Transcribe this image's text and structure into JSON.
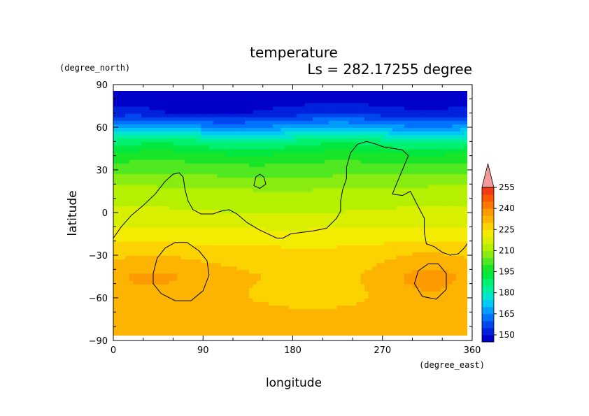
{
  "chart_data": {
    "type": "heatmap",
    "title": "temperature",
    "subtitle": "Ls = 282.17255 degree",
    "xlabel": "longitude",
    "ylabel": "latitude",
    "x_units": "(degree_east)",
    "y_units": "(degree_north)",
    "xlim": [
      0,
      360
    ],
    "ylim": [
      -90,
      90
    ],
    "x_ticks": [
      0,
      90,
      180,
      270,
      360
    ],
    "y_ticks": [
      90,
      60,
      30,
      0,
      -30,
      -60,
      -90
    ],
    "x_tick_labels": [
      "0",
      "90",
      "180",
      "270",
      "360"
    ],
    "y_tick_labels": [
      "90",
      "60",
      "30",
      "0",
      "−30",
      "−60",
      "−90"
    ],
    "data_lat_range": [
      -87,
      87
    ],
    "colorbar": {
      "levels": [
        145,
        150,
        155,
        160,
        165,
        170,
        175,
        180,
        185,
        190,
        195,
        200,
        205,
        210,
        215,
        220,
        225,
        230,
        235,
        240,
        245,
        250,
        255,
        260
      ],
      "tick_values": [
        150,
        165,
        180,
        195,
        210,
        225,
        240,
        255
      ],
      "tick_labels": [
        "150",
        "165",
        "180",
        "195",
        "210",
        "225",
        "240",
        "255"
      ],
      "colors": [
        "#0000c8",
        "#0022dc",
        "#0048ee",
        "#0072ff",
        "#009cff",
        "#00c8f4",
        "#00e4d0",
        "#00f0a0",
        "#00f070",
        "#00e840",
        "#18e428",
        "#50e820",
        "#88ec10",
        "#b4f000",
        "#d8f000",
        "#f4ec00",
        "#fcd200",
        "#fcb400",
        "#fc9a00",
        "#fc7800",
        "#fc5a00",
        "#f43c14",
        "#f06464",
        "#f49a9a"
      ],
      "extend": "max"
    },
    "field_description_points": [
      {
        "lat": 80,
        "temp": 148
      },
      {
        "lat": 70,
        "temp": 152
      },
      {
        "lat": 60,
        "temp": 168
      },
      {
        "lat": 50,
        "temp": 186
      },
      {
        "lat": 40,
        "temp": 197
      },
      {
        "lat": 30,
        "temp": 203
      },
      {
        "lat": 15,
        "temp": 212
      },
      {
        "lat": 0,
        "temp": 216
      },
      {
        "lat": -15,
        "temp": 222
      },
      {
        "lat": -30,
        "temp": 228
      },
      {
        "lat": -45,
        "temp": 232
      },
      {
        "lat": -60,
        "temp": 231
      },
      {
        "lat": -80,
        "temp": 233
      }
    ],
    "contours": [
      {
        "name": "continent",
        "points": [
          [
            0,
            -18
          ],
          [
            8,
            -10
          ],
          [
            18,
            -2
          ],
          [
            30,
            5
          ],
          [
            42,
            13
          ],
          [
            52,
            22
          ],
          [
            60,
            27
          ],
          [
            66,
            28
          ],
          [
            70,
            25
          ],
          [
            72,
            16
          ],
          [
            75,
            8
          ],
          [
            80,
            2
          ],
          [
            88,
            -1
          ],
          [
            100,
            -1
          ],
          [
            108,
            1
          ],
          [
            116,
            2
          ],
          [
            124,
            -1
          ],
          [
            134,
            -7
          ],
          [
            146,
            -12
          ],
          [
            158,
            -16
          ],
          [
            164,
            -18
          ],
          [
            170,
            -18
          ],
          [
            178,
            -15
          ],
          [
            188,
            -14
          ],
          [
            200,
            -13
          ],
          [
            214,
            -11
          ],
          [
            224,
            -4
          ],
          [
            228,
            1
          ],
          [
            228,
            8
          ],
          [
            230,
            16
          ],
          [
            234,
            24
          ],
          [
            234,
            32
          ],
          [
            238,
            42
          ],
          [
            245,
            48
          ],
          [
            254,
            50
          ],
          [
            264,
            48
          ],
          [
            272,
            46
          ],
          [
            282,
            45
          ],
          [
            290,
            44
          ],
          [
            296,
            40
          ],
          [
            290,
            30
          ],
          [
            284,
            20
          ],
          [
            280,
            13
          ],
          [
            290,
            12
          ],
          [
            298,
            15
          ],
          [
            306,
            4
          ],
          [
            312,
            -4
          ],
          [
            312,
            -14
          ],
          [
            314,
            -22
          ],
          [
            322,
            -24
          ],
          [
            330,
            -28
          ],
          [
            338,
            -30
          ],
          [
            346,
            -29
          ],
          [
            352,
            -25
          ],
          [
            356,
            -21
          ]
        ]
      },
      {
        "name": "small-island",
        "points": [
          [
            141,
            19
          ],
          [
            143,
            25
          ],
          [
            147,
            27
          ],
          [
            151,
            25
          ],
          [
            153,
            20
          ],
          [
            147,
            17
          ],
          [
            141,
            19
          ]
        ]
      },
      {
        "name": "west-basin",
        "points": [
          [
            40,
            -43
          ],
          [
            44,
            -32
          ],
          [
            52,
            -25
          ],
          [
            62,
            -21
          ],
          [
            74,
            -21
          ],
          [
            86,
            -27
          ],
          [
            94,
            -34
          ],
          [
            96,
            -44
          ],
          [
            90,
            -55
          ],
          [
            78,
            -62
          ],
          [
            62,
            -62
          ],
          [
            48,
            -57
          ],
          [
            40,
            -50
          ],
          [
            40,
            -43
          ]
        ]
      },
      {
        "name": "east-basin",
        "points": [
          [
            302,
            -50
          ],
          [
            306,
            -41
          ],
          [
            316,
            -36
          ],
          [
            326,
            -36
          ],
          [
            334,
            -43
          ],
          [
            334,
            -54
          ],
          [
            324,
            -61
          ],
          [
            310,
            -59
          ],
          [
            302,
            -50
          ]
        ]
      }
    ]
  }
}
